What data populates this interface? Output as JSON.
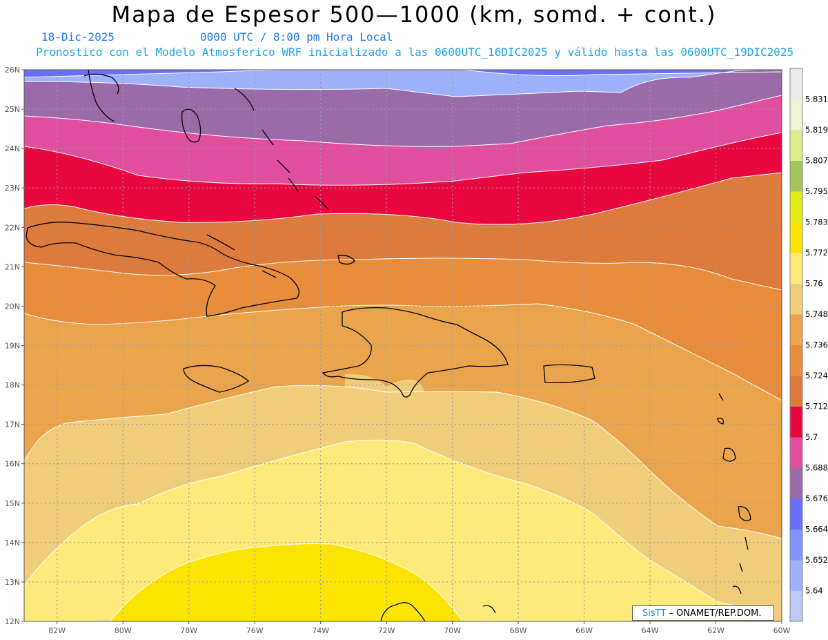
{
  "title": "Mapa de Espesor 500—1000 (km, somd. + cont.)",
  "date": "18-Dic-2025",
  "time": "0000 UTC / 8:00 pm Hora Local",
  "description": "Pronostico con el Modelo Atmosferico WRF inicializado a las 0600UTC_16DIC2025 y válido hasta las  0600UTC_19DIC2025",
  "credits": {
    "brand": "SisTT",
    "org": " – ONAMET/REP.DOM."
  },
  "map": {
    "lon_range": [
      -83,
      -60
    ],
    "lat_range": [
      12,
      26
    ],
    "lon_labels": [
      "82W",
      "80W",
      "78W",
      "76W",
      "74W",
      "72W",
      "70W",
      "68W",
      "66W",
      "64W",
      "62W",
      "60W"
    ],
    "lat_labels": [
      "26N",
      "25N",
      "24N",
      "23N",
      "22N",
      "21N",
      "20N",
      "19N",
      "18N",
      "17N",
      "16N",
      "15N",
      "14N",
      "13N",
      "12N"
    ]
  },
  "colorbar": {
    "levels": [
      "5.64",
      "5.652",
      "5.664",
      "5.676",
      "5.688",
      "5.7",
      "5.712",
      "5.724",
      "5.736",
      "5.748",
      "5.76",
      "5.772",
      "5.783",
      "5.795",
      "5.807",
      "5.819",
      "5.831"
    ],
    "colors": [
      "#bdc8f5",
      "#9eb1fb",
      "#7f95fd",
      "#6a6ffb",
      "#9a6ba8",
      "#e04f9d",
      "#e9073f",
      "#dd7b3d",
      "#e88d3b",
      "#eaa54c",
      "#f0cd7a",
      "#fdea7a",
      "#fbe500",
      "#e3ea1a",
      "#a3c45a",
      "#dcec8c",
      "#f0f4d2",
      "#ebebeb"
    ]
  },
  "bands": [
    {
      "level": "5.664",
      "color": "#6a6ffb"
    },
    {
      "level": "5.676",
      "color": "#9a6ba8"
    },
    {
      "level": "5.688",
      "color": "#e04f9d"
    },
    {
      "level": "5.7",
      "color": "#e9073f"
    },
    {
      "level": "5.712",
      "color": "#dd7b3d"
    },
    {
      "level": "5.724",
      "color": "#e88d3b"
    },
    {
      "level": "5.736",
      "color": "#eaa54c"
    },
    {
      "level": "5.748",
      "color": "#f0cd7a"
    },
    {
      "level": "5.76",
      "color": "#fdea7a"
    },
    {
      "level": "5.772",
      "color": "#fbe500"
    }
  ],
  "colors": {
    "header": "#2277ee",
    "subheader": "#18a4e8",
    "grid": "#9a9aa8",
    "contour": "#ffffff",
    "coast": "#000000"
  }
}
